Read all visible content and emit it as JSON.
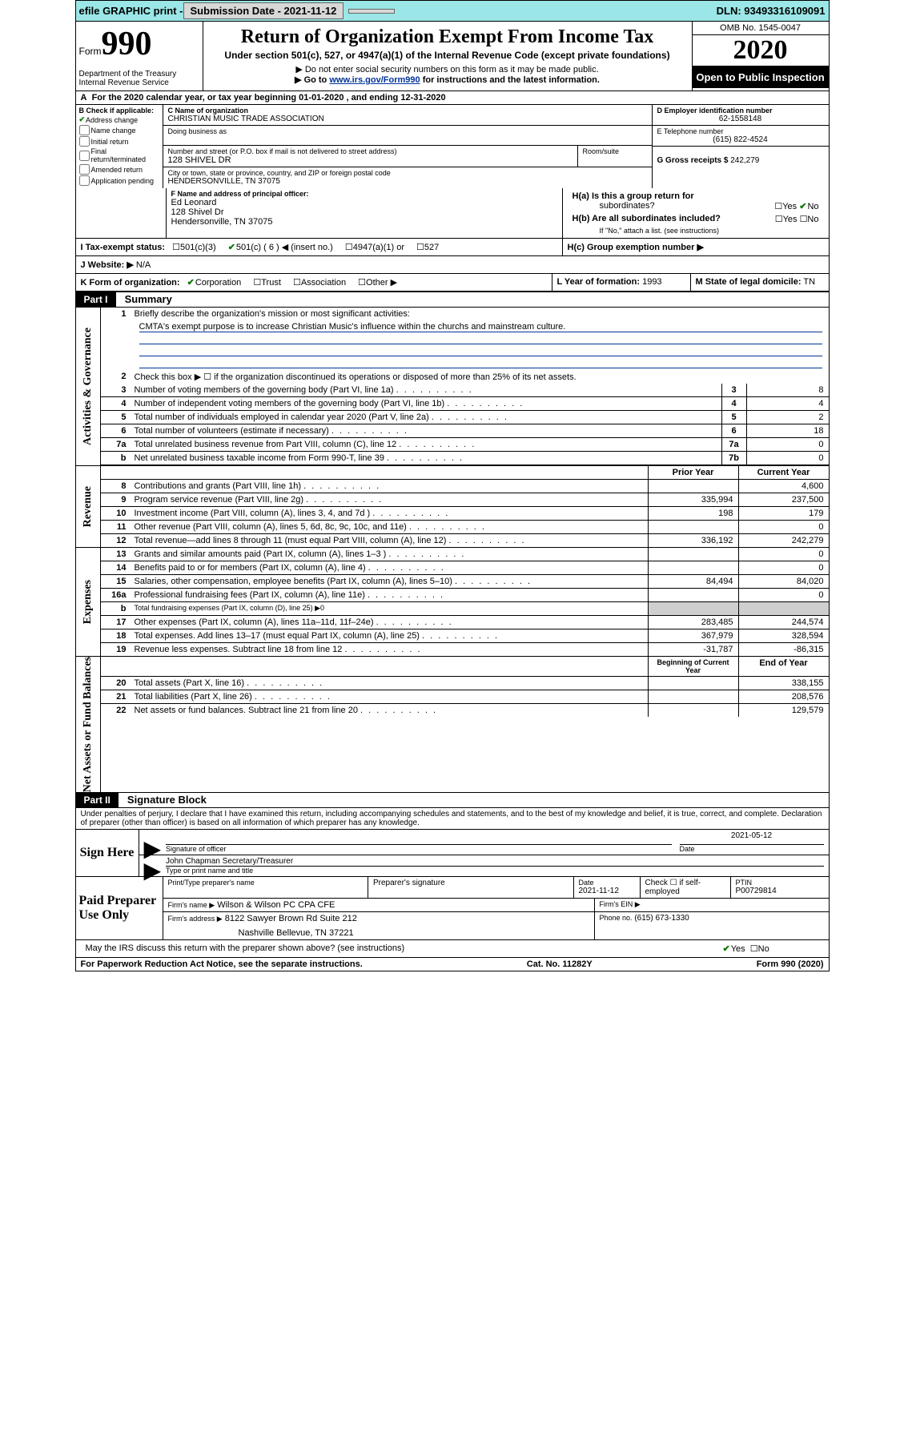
{
  "top_bar": {
    "efile_label": "efile GRAPHIC print -",
    "submission_label": "Submission Date - 2021-11-12",
    "dln": "DLN: 93493316109091"
  },
  "header": {
    "form_word": "Form",
    "form_number": "990",
    "dept": "Department of the Treasury\nInternal Revenue Service",
    "title": "Return of Organization Exempt From Income Tax",
    "subtitle": "Under section 501(c), 527, or 4947(a)(1) of the Internal Revenue Code (except private foundations)",
    "sub2": "▶ Do not enter social security numbers on this form as it may be made public.",
    "sub3_pre": "▶ Go to ",
    "sub3_link": "www.irs.gov/Form990",
    "sub3_post": " for instructions and the latest information.",
    "omb": "OMB No. 1545-0047",
    "year": "2020",
    "open_public": "Open to Public Inspection"
  },
  "row_a": "For the 2020 calendar year, or tax year beginning 01-01-2020    , and ending 12-31-2020",
  "section_b": {
    "label": "B Check if applicable:",
    "opts": [
      "Address change",
      "Name change",
      "Initial return",
      "Final return/terminated",
      "Amended return",
      "Application pending"
    ],
    "checked": [
      true,
      false,
      false,
      false,
      false,
      false
    ]
  },
  "section_c": {
    "c_label": "C Name of organization",
    "org_name": "CHRISTIAN MUSIC TRADE ASSOCIATION",
    "dba_label": "Doing business as",
    "street_label": "Number and street (or P.O. box if mail is not delivered to street address)",
    "room_label": "Room/suite",
    "street": "128 SHIVEL DR",
    "city_label": "City or town, state or province, country, and ZIP or foreign postal code",
    "city": "HENDERSONVILLE, TN  37075"
  },
  "section_d": {
    "d_label": "D Employer identification number",
    "ein": "62-1558148",
    "e_label": "E Telephone number",
    "phone": "(615) 822-4524",
    "g_label": "G Gross receipts $",
    "gross": "242,279"
  },
  "section_f": {
    "f_label": "F Name and address of principal officer:",
    "name": "Ed Leonard",
    "addr1": "128 Shivel Dr",
    "addr2": "Hendersonville, TN  37075"
  },
  "section_h": {
    "ha_label": "H(a)  Is this a group return for",
    "ha_sub": "subordinates?",
    "hb_label": "H(b)  Are all subordinates included?",
    "hb_note": "If \"No,\" attach a list. (see instructions)",
    "hc_label": "H(c)  Group exemption number ▶"
  },
  "row_i": {
    "label": "I  Tax-exempt status:",
    "opt1": "501(c)(3)",
    "opt2": "501(c) ( 6 ) ◀ (insert no.)",
    "opt3": "4947(a)(1) or",
    "opt4": "527"
  },
  "row_j": {
    "label": "J  Website: ▶",
    "value": "N/A"
  },
  "row_k": {
    "label": "K Form of organization:",
    "opts": [
      "Corporation",
      "Trust",
      "Association",
      "Other ▶"
    ]
  },
  "row_lm": {
    "l_label": "L Year of formation:",
    "l_val": "1993",
    "m_label": "M State of legal domicile:",
    "m_val": "TN"
  },
  "part1": {
    "hdr": "Part I",
    "title": "Summary",
    "side_gov": "Activities & Governance",
    "side_rev": "Revenue",
    "side_exp": "Expenses",
    "side_net": "Net Assets or Fund Balances",
    "line1": "Briefly describe the organization's mission or most significant activities:",
    "mission": "CMTA's exempt purpose is to increase Christian Music's influence within the churchs and mainstream culture.",
    "line2": "Check this box ▶ ☐  if the organization discontinued its operations or disposed of more than 25% of its net assets.",
    "prior_year_hdr": "Prior Year",
    "current_year_hdr": "Current Year",
    "boc_hdr": "Beginning of Current Year",
    "eoy_hdr": "End of Year",
    "lines_gov": [
      {
        "n": "3",
        "desc": "Number of voting members of the governing body (Part VI, line 1a)",
        "box": "3",
        "val": "8"
      },
      {
        "n": "4",
        "desc": "Number of independent voting members of the governing body (Part VI, line 1b)",
        "box": "4",
        "val": "4"
      },
      {
        "n": "5",
        "desc": "Total number of individuals employed in calendar year 2020 (Part V, line 2a)",
        "box": "5",
        "val": "2"
      },
      {
        "n": "6",
        "desc": "Total number of volunteers (estimate if necessary)",
        "box": "6",
        "val": "18"
      },
      {
        "n": "7a",
        "desc": "Total unrelated business revenue from Part VIII, column (C), line 12",
        "box": "7a",
        "val": "0"
      },
      {
        "n": "b",
        "desc": "Net unrelated business taxable income from Form 990-T, line 39",
        "box": "7b",
        "val": "0"
      }
    ],
    "lines_rev": [
      {
        "n": "8",
        "desc": "Contributions and grants (Part VIII, line 1h)",
        "py": "",
        "cy": "4,600"
      },
      {
        "n": "9",
        "desc": "Program service revenue (Part VIII, line 2g)",
        "py": "335,994",
        "cy": "237,500"
      },
      {
        "n": "10",
        "desc": "Investment income (Part VIII, column (A), lines 3, 4, and 7d )",
        "py": "198",
        "cy": "179"
      },
      {
        "n": "11",
        "desc": "Other revenue (Part VIII, column (A), lines 5, 6d, 8c, 9c, 10c, and 11e)",
        "py": "",
        "cy": "0"
      },
      {
        "n": "12",
        "desc": "Total revenue—add lines 8 through 11 (must equal Part VIII, column (A), line 12)",
        "py": "336,192",
        "cy": "242,279"
      }
    ],
    "lines_exp": [
      {
        "n": "13",
        "desc": "Grants and similar amounts paid (Part IX, column (A), lines 1–3 )",
        "py": "",
        "cy": "0"
      },
      {
        "n": "14",
        "desc": "Benefits paid to or for members (Part IX, column (A), line 4)",
        "py": "",
        "cy": "0"
      },
      {
        "n": "15",
        "desc": "Salaries, other compensation, employee benefits (Part IX, column (A), lines 5–10)",
        "py": "84,494",
        "cy": "84,020"
      },
      {
        "n": "16a",
        "desc": "Professional fundraising fees (Part IX, column (A), line 11e)",
        "py": "",
        "cy": "0"
      },
      {
        "n": "b",
        "desc": "Total fundraising expenses (Part IX, column (D), line 25) ▶0",
        "py": "GREY",
        "cy": "GREY"
      },
      {
        "n": "17",
        "desc": "Other expenses (Part IX, column (A), lines 11a–11d, 11f–24e)",
        "py": "283,485",
        "cy": "244,574"
      },
      {
        "n": "18",
        "desc": "Total expenses. Add lines 13–17 (must equal Part IX, column (A), line 25)",
        "py": "367,979",
        "cy": "328,594"
      },
      {
        "n": "19",
        "desc": "Revenue less expenses. Subtract line 18 from line 12",
        "py": "-31,787",
        "cy": "-86,315"
      }
    ],
    "lines_net": [
      {
        "n": "20",
        "desc": "Total assets (Part X, line 16)",
        "py": "",
        "cy": "338,155"
      },
      {
        "n": "21",
        "desc": "Total liabilities (Part X, line 26)",
        "py": "",
        "cy": "208,576"
      },
      {
        "n": "22",
        "desc": "Net assets or fund balances. Subtract line 21 from line 20",
        "py": "",
        "cy": "129,579"
      }
    ]
  },
  "part2": {
    "hdr": "Part II",
    "title": "Signature Block",
    "penalty": "Under penalties of perjury, I declare that I have examined this return, including accompanying schedules and statements, and to the best of my knowledge and belief, it is true, correct, and complete. Declaration of preparer (other than officer) is based on all information of which preparer has any knowledge.",
    "sign_here": "Sign Here",
    "sig_officer": "Signature of officer",
    "date_lbl": "Date",
    "sig_date": "2021-05-12",
    "officer_name": "John Chapman  Secretary/Treasurer",
    "type_name": "Type or print name and title",
    "paid_prep": "Paid Preparer Use Only",
    "prep_name_lbl": "Print/Type preparer's name",
    "prep_sig_lbl": "Preparer's signature",
    "prep_date_lbl": "Date",
    "prep_date": "2021-11-12",
    "check_self": "Check ☐ if self-employed",
    "ptin_lbl": "PTIN",
    "ptin": "P00729814",
    "firm_name_lbl": "Firm's name    ▶",
    "firm_name": "Wilson & Wilson PC CPA CFE",
    "firm_ein_lbl": "Firm's EIN ▶",
    "firm_addr_lbl": "Firm's address ▶",
    "firm_addr1": "8122 Sawyer Brown Rd Suite 212",
    "firm_addr2": "Nashville Bellevue, TN  37221",
    "phone_lbl": "Phone no.",
    "phone": "(615) 673-1330",
    "discuss": "May the IRS discuss this return with the preparer shown above? (see instructions)"
  },
  "footer": {
    "left": "For Paperwork Reduction Act Notice, see the separate instructions.",
    "center": "Cat. No. 11282Y",
    "right": "Form 990 (2020)"
  },
  "colors": {
    "topbar_bg": "#9be6e6",
    "link": "#003399",
    "check_green": "#007700"
  }
}
